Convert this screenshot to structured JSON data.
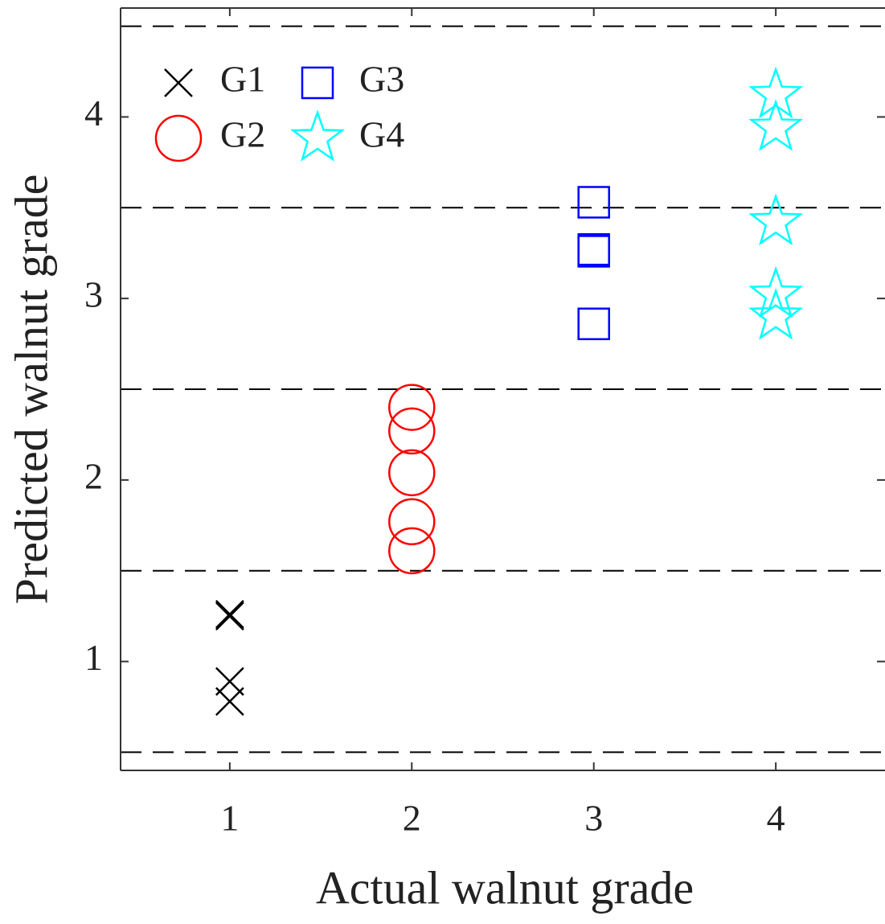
{
  "chart_data": {
    "type": "scatter",
    "xlabel": "Actual walnut grade",
    "ylabel": "Predicted walnut grade",
    "xlim": [
      0.4,
      4.6
    ],
    "ylim": [
      0.4,
      4.6
    ],
    "xticks": [
      1,
      2,
      3,
      4
    ],
    "yticks": [
      1,
      2,
      3,
      4
    ],
    "dashed_lines": [
      0.5,
      1.5,
      2.5,
      3.5,
      4.5
    ],
    "legend": "upper-left",
    "series": [
      {
        "name": "G1",
        "color": "#000000",
        "marker": "x",
        "x": [
          1,
          1,
          1,
          1
        ],
        "y": [
          1.25,
          1.26,
          0.89,
          0.78
        ]
      },
      {
        "name": "G2",
        "color": "#ff0000",
        "marker": "circle",
        "x": [
          2,
          2,
          2,
          2,
          2
        ],
        "y": [
          2.4,
          2.27,
          2.04,
          1.77,
          1.61
        ]
      },
      {
        "name": "G3",
        "color": "#0000ff",
        "marker": "square",
        "x": [
          3,
          3,
          3,
          3
        ],
        "y": [
          3.53,
          3.26,
          3.27,
          2.86
        ]
      },
      {
        "name": "G4",
        "color": "#00ffff",
        "marker": "star",
        "x": [
          4,
          4,
          4,
          4,
          4
        ],
        "y": [
          4.12,
          3.94,
          3.42,
          3.02,
          2.9
        ]
      }
    ]
  }
}
